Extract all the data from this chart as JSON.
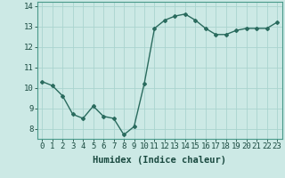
{
  "x": [
    0,
    1,
    2,
    3,
    4,
    5,
    6,
    7,
    8,
    9,
    10,
    11,
    12,
    13,
    14,
    15,
    16,
    17,
    18,
    19,
    20,
    21,
    22,
    23
  ],
  "y": [
    10.3,
    10.1,
    9.6,
    8.7,
    8.5,
    9.1,
    8.6,
    8.5,
    7.7,
    8.1,
    10.2,
    12.9,
    13.3,
    13.5,
    13.6,
    13.3,
    12.9,
    12.6,
    12.6,
    12.8,
    12.9,
    12.9,
    12.9,
    13.2
  ],
  "xlabel": "Humidex (Indice chaleur)",
  "ylim": [
    7.5,
    14.2
  ],
  "xlim": [
    -0.5,
    23.5
  ],
  "yticks": [
    8,
    9,
    10,
    11,
    12,
    13,
    14
  ],
  "xtick_labels": [
    "0",
    "1",
    "2",
    "3",
    "4",
    "5",
    "6",
    "7",
    "8",
    "9",
    "10",
    "11",
    "12",
    "13",
    "14",
    "15",
    "16",
    "17",
    "18",
    "19",
    "20",
    "21",
    "22",
    "23"
  ],
  "line_color": "#2a6b5e",
  "bg_color": "#cce9e5",
  "grid_color": "#aad4cf",
  "axes_color": "#4a9a8a",
  "text_color": "#1a4a40",
  "xlabel_fontsize": 7.5,
  "tick_fontsize": 6.5,
  "marker": "D",
  "marker_size": 2.0,
  "line_width": 1.0
}
